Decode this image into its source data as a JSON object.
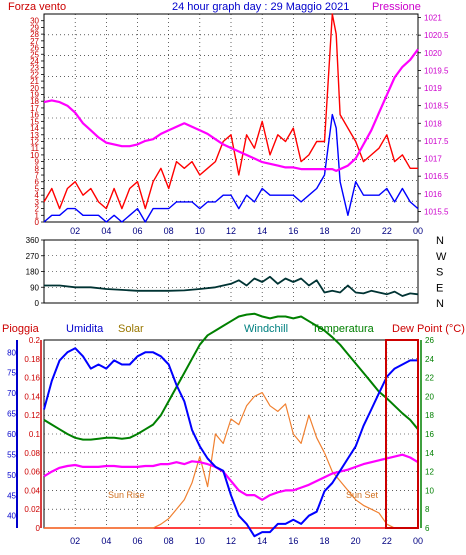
{
  "header": {
    "left_label": "Forza vento",
    "title": "24 hour graph day : 29 Maggio 2021",
    "right_label": "Pressione"
  },
  "colors": {
    "wind_gust": "#ff0000",
    "wind_avg": "#0000ff",
    "pressure": "#ff00ff",
    "direction": "#003333",
    "humidity": "#0000ff",
    "solar": "#f08030",
    "windchill": "#008000",
    "temperature": "#008000",
    "dew_point": "#ff00ff",
    "rain": "#ff0000",
    "grid": "#000000",
    "axis_left": "#cc0000",
    "axis_right": "#cc00cc"
  },
  "x_ticks": [
    "02",
    "04",
    "06",
    "08",
    "10",
    "12",
    "14",
    "16",
    "18",
    "20",
    "22",
    "00"
  ],
  "chart_data": [
    {
      "type": "line",
      "id": "wind_pressure",
      "x_hours": [
        0,
        0.5,
        1,
        1.5,
        2,
        2.5,
        3,
        3.5,
        4,
        4.5,
        5,
        5.5,
        6,
        6.5,
        7,
        7.5,
        8,
        8.5,
        9,
        9.5,
        10,
        10.5,
        11,
        11.5,
        12,
        12.5,
        13,
        13.5,
        14,
        14.5,
        15,
        15.5,
        16,
        16.5,
        17,
        17.5,
        18,
        18.5,
        18.75,
        19,
        19.5,
        20,
        20.5,
        21,
        21.5,
        22,
        22.5,
        23,
        23.5,
        24
      ],
      "series": [
        {
          "name": "Forza vento",
          "axis": "left",
          "values": [
            3,
            5,
            2,
            5,
            6,
            4,
            5,
            3,
            2,
            5,
            2,
            5,
            6,
            2,
            6,
            8,
            5,
            9,
            8,
            9,
            7,
            8,
            9,
            12,
            13,
            7,
            13,
            11,
            15,
            10,
            13,
            12,
            14,
            9,
            10,
            12,
            12,
            31,
            28,
            16,
            14,
            12,
            9,
            10,
            11,
            13,
            9,
            10,
            8,
            8
          ]
        },
        {
          "name": "wind avg",
          "axis": "left",
          "values": [
            0,
            1,
            1,
            2,
            2,
            1,
            1,
            1,
            0,
            1,
            0,
            1,
            2,
            0,
            2,
            2,
            2,
            3,
            3,
            3,
            2,
            3,
            3,
            4,
            4,
            2,
            4,
            3,
            5,
            4,
            4,
            4,
            4,
            3,
            4,
            5,
            7,
            16,
            14,
            6,
            1,
            6,
            4,
            4,
            4,
            5,
            3,
            5,
            3,
            2
          ]
        },
        {
          "name": "Pressione",
          "axis": "right",
          "values": [
            1018.6,
            1018.65,
            1018.6,
            1018.5,
            1018.3,
            1018.0,
            1017.8,
            1017.6,
            1017.45,
            1017.4,
            1017.35,
            1017.35,
            1017.4,
            1017.5,
            1017.55,
            1017.7,
            1017.8,
            1017.9,
            1018.0,
            1017.9,
            1017.8,
            1017.7,
            1017.55,
            1017.4,
            1017.3,
            1017.2,
            1017.1,
            1017.0,
            1016.9,
            1016.85,
            1016.8,
            1016.75,
            1016.75,
            1016.7,
            1016.7,
            1016.7,
            1016.7,
            1016.7,
            1016.65,
            1016.7,
            1016.8,
            1017.0,
            1017.4,
            1017.8,
            1018.3,
            1018.8,
            1019.3,
            1019.6,
            1019.8,
            1020.1
          ]
        }
      ],
      "left_ticks": [
        0,
        1,
        2,
        3,
        4,
        5,
        6,
        7,
        8,
        9,
        10,
        11,
        12,
        13,
        14,
        15,
        16,
        17,
        18,
        19,
        20,
        21,
        22,
        23,
        24,
        25,
        26,
        27,
        28,
        29,
        30
      ],
      "right_ticks": [
        "1015.5",
        "1016",
        "1016.5",
        "1017",
        "1017.5",
        "1018",
        "1018.5",
        "1019",
        "1019.5",
        "1020",
        "1020.5",
        "1021"
      ],
      "ylim": [
        0,
        31
      ],
      "ylim_right": [
        1015.2,
        1021.1
      ]
    },
    {
      "type": "line",
      "id": "direction",
      "x_hours": [
        0,
        1,
        2,
        3,
        4,
        5,
        6,
        7,
        8,
        9,
        10,
        11,
        12,
        12.5,
        13,
        13.5,
        14,
        14.5,
        15,
        15.5,
        16,
        16.5,
        17,
        17.5,
        18,
        18.5,
        19,
        19.5,
        20,
        20.5,
        21,
        21.5,
        22,
        22.5,
        23,
        23.5,
        24
      ],
      "series": [
        {
          "name": "direction",
          "values": [
            100,
            100,
            90,
            90,
            80,
            75,
            70,
            70,
            70,
            72,
            80,
            90,
            110,
            130,
            100,
            140,
            120,
            150,
            110,
            140,
            120,
            140,
            100,
            130,
            60,
            70,
            60,
            100,
            60,
            55,
            70,
            60,
            50,
            65,
            40,
            55,
            50
          ]
        }
      ],
      "left_ticks": [
        0,
        90,
        180,
        270,
        360
      ],
      "right_labels": [
        "N",
        "W",
        "S",
        "E",
        "N"
      ],
      "ylim": [
        0,
        360
      ]
    },
    {
      "type": "line",
      "id": "multi",
      "header_labels": {
        "rain": "Pioggia",
        "humidity": "Umidita",
        "solar": "Solar",
        "windchill": "Windchill",
        "temperature": "Temperatura",
        "dew_point": "Dew Point (°C)"
      },
      "annotations": {
        "sunrise": "Sun Rise",
        "sunset": "Sun Set"
      },
      "x_hours": [
        0,
        0.5,
        1,
        1.5,
        2,
        2.5,
        3,
        3.5,
        4,
        4.5,
        5,
        5.5,
        6,
        6.5,
        7,
        7.5,
        8,
        8.5,
        9,
        9.5,
        10,
        10.5,
        11,
        11.5,
        12,
        12.5,
        13,
        13.5,
        14,
        14.5,
        15,
        15.5,
        16,
        16.5,
        17,
        17.5,
        18,
        18.5,
        19,
        19.5,
        20,
        20.5,
        21,
        21.5,
        22,
        22.5,
        23,
        23.5,
        24
      ],
      "series": [
        {
          "name": "Umidita",
          "axis": "humidity",
          "values": [
            66,
            73,
            78,
            80,
            81,
            79,
            76,
            77,
            76,
            78,
            77,
            77,
            79,
            80,
            80,
            79,
            77,
            72,
            68,
            61,
            57,
            54,
            52,
            51,
            45,
            40,
            38,
            35,
            36,
            36,
            38,
            38,
            39,
            38,
            40,
            41,
            46,
            48,
            51,
            54,
            57,
            62,
            66,
            70,
            74,
            76,
            77,
            78,
            78
          ]
        },
        {
          "name": "Temperatura",
          "axis": "temp",
          "values": [
            17.5,
            17.0,
            16.5,
            16.0,
            15.6,
            15.4,
            15.4,
            15.5,
            15.6,
            15.6,
            15.5,
            15.6,
            16.0,
            16.5,
            17.0,
            18.0,
            19.5,
            21.0,
            22.5,
            24.0,
            25.5,
            26.5,
            27.0,
            27.5,
            28.0,
            28.5,
            28.7,
            28.8,
            28.5,
            28.3,
            28.5,
            28.5,
            28.3,
            28.5,
            28.0,
            27.5,
            27.0,
            26.3,
            25.5,
            24.5,
            23.5,
            22.5,
            21.5,
            20.5,
            19.8,
            19.0,
            18.2,
            17.5,
            16.5
          ]
        },
        {
          "name": "Dew Point (°C)",
          "axis": "temp",
          "values": [
            11.5,
            12.0,
            12.4,
            12.6,
            12.7,
            12.5,
            12.5,
            12.5,
            12.6,
            12.6,
            12.5,
            12.5,
            12.5,
            12.6,
            12.6,
            12.8,
            12.8,
            13.0,
            12.8,
            13.1,
            13.0,
            12.8,
            12.5,
            12.0,
            11.0,
            10.0,
            9.5,
            9.5,
            9.0,
            9.5,
            9.8,
            10.0,
            10.0,
            10.3,
            10.6,
            11.0,
            11.4,
            11.8,
            12.0,
            12.2,
            12.5,
            12.8,
            13.0,
            13.2,
            13.4,
            13.6,
            13.8,
            13.5,
            13.0
          ]
        },
        {
          "name": "Solar",
          "axis": "solar",
          "values": [
            0,
            0,
            0,
            0,
            0,
            0,
            0,
            0,
            0,
            0,
            0,
            0,
            0,
            0,
            0,
            2,
            5,
            10,
            15,
            24,
            38,
            22,
            50,
            45,
            58,
            55,
            65,
            70,
            72,
            65,
            62,
            66,
            50,
            45,
            60,
            48,
            40,
            30,
            25,
            20,
            15,
            12,
            10,
            8,
            2,
            0,
            0,
            0,
            0
          ]
        }
      ],
      "rain_values": [
        0,
        0,
        0,
        0,
        0,
        0,
        0,
        0,
        0,
        0,
        0,
        0,
        0,
        0,
        0,
        0,
        0,
        0,
        0,
        0,
        0,
        0,
        0,
        0,
        0,
        0,
        0,
        0,
        0,
        0,
        0,
        0,
        0,
        0,
        0,
        0,
        0,
        0,
        0,
        0,
        0,
        0,
        0,
        0,
        0,
        0,
        0,
        0,
        0
      ],
      "humidity_ticks": [
        40,
        45,
        50,
        55,
        60,
        65,
        70,
        75,
        80
      ],
      "rain_ticks": [
        "0",
        "0.02",
        "0.04",
        "0.06",
        "0.08",
        "0.1",
        "0.12",
        "0.14",
        "0.16",
        "0.18",
        "0.2"
      ],
      "temp_ticks": [
        6,
        8,
        10,
        12,
        14,
        16,
        18,
        20,
        22,
        24,
        26
      ],
      "ylim_humidity": [
        37,
        83
      ],
      "ylim_temp": [
        6,
        26
      ],
      "ylim_solar": [
        0,
        100
      ],
      "ylim_rain": [
        0,
        0.2
      ]
    }
  ]
}
